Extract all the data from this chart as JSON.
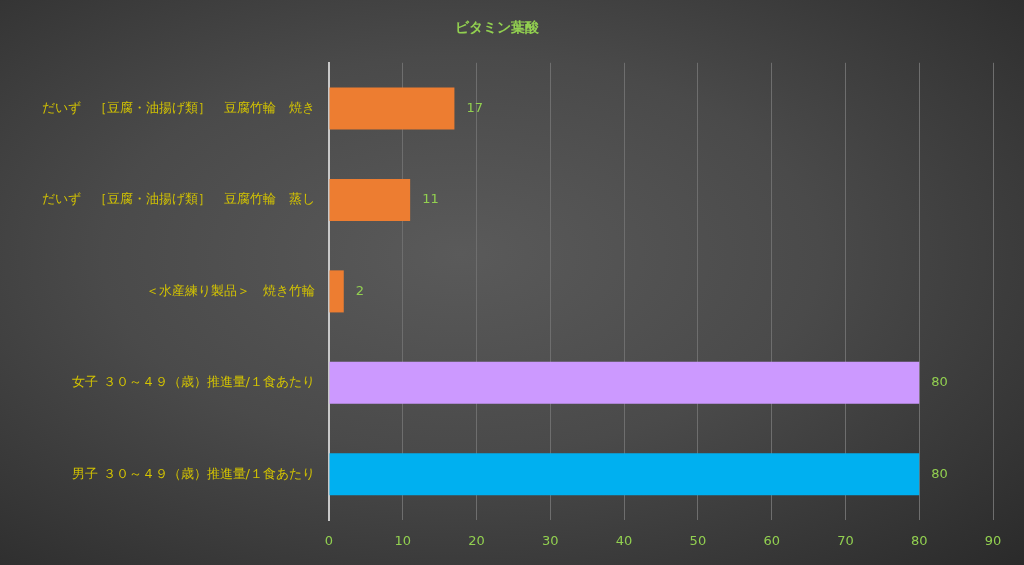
{
  "chart_data": {
    "type": "bar",
    "orientation": "horizontal",
    "title": "ビタミン葉酸",
    "categories": [
      "だいず　［豆腐・油揚げ類］　豆腐竹輪　焼き",
      "だいず　［豆腐・油揚げ類］　豆腐竹輪　蒸し",
      "＜水産練り製品＞　焼き竹輪",
      "女子 ３０～４９（歳）推進量/１食あたり",
      "男子 ３０～４９（歳）推進量/１食あたり"
    ],
    "values": [
      17,
      11,
      2,
      80,
      80
    ],
    "colors": [
      "#ed7d31",
      "#ed7d31",
      "#ed7d31",
      "#cc99ff",
      "#00b0f0"
    ],
    "xlim": [
      0,
      90
    ],
    "xticks": [
      0,
      10,
      20,
      30,
      40,
      50,
      60,
      70,
      80,
      90
    ],
    "grid": "x",
    "data_labels": true
  }
}
